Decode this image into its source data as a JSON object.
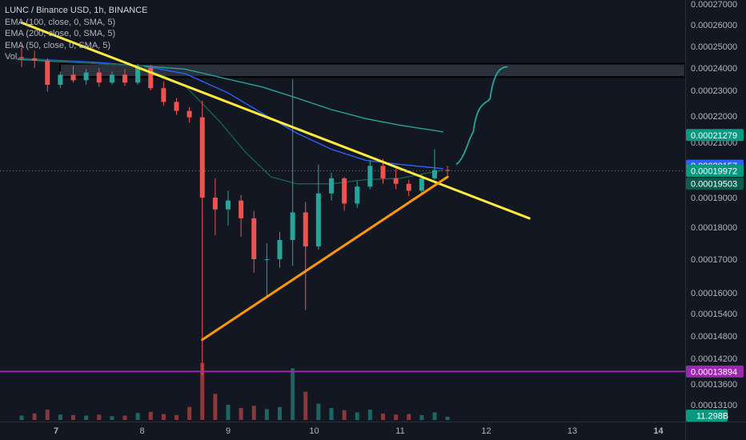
{
  "header": {
    "title": "LUNC / Binance USD, 1h, BINANCE",
    "indicators": [
      "EMA (100, close, 0, SMA, 5)",
      "EMA (200, close, 0, SMA, 5)",
      "EMA (50, close, 0, SMA, 5)",
      "Vol"
    ]
  },
  "chart_data": {
    "type": "candlestick",
    "symbol": "LUNC / Binance USD",
    "interval": "1h",
    "exchange": "BINANCE",
    "y_ticks": [
      0.00027,
      0.00026,
      0.00025,
      0.00024,
      0.00023,
      0.00022,
      0.00021,
      0.00019,
      0.00018,
      0.00017,
      0.00016,
      0.000154,
      0.000148,
      0.000142,
      0.000136,
      0.000131
    ],
    "y_tick_labels": [
      "0.00027000",
      "0.00026000",
      "0.00025000",
      "0.00024000",
      "0.00023000",
      "0.00022000",
      "0.00021000",
      "0.00019000",
      "0.00018000",
      "0.00017000",
      "0.00016000",
      "0.00015400",
      "0.00014800",
      "0.00014200",
      "0.00013600",
      "0.00013100"
    ],
    "x_ticks": [
      7,
      8,
      9,
      10,
      11,
      12,
      13,
      14
    ],
    "x_tick_labels": [
      "7",
      "8",
      "9",
      "10",
      "11",
      "12",
      "13",
      "14"
    ],
    "price_badges": [
      {
        "label": "0.00021279",
        "value": 0.00021279,
        "color": "#089981"
      },
      {
        "label": "0.00020157",
        "value": 0.00020157,
        "color": "#2962ff"
      },
      {
        "label": "0.00019972",
        "value": 0.00019972,
        "color": "#089981"
      },
      {
        "label": "0.00019503",
        "value": 0.00019503,
        "color": "#0b5c4c"
      },
      {
        "label": "0.00013894",
        "value": 0.00013894,
        "color": "#9c27b0"
      }
    ],
    "volume_badge": {
      "label": "11.298B",
      "color": "#089981"
    },
    "last_price": 0.00019972,
    "support_level": 0.00013894,
    "resistance_zone": [
      0.000236,
      0.000242
    ],
    "trendlines": [
      {
        "name": "descending",
        "x": [
          6.6,
          12.5
        ],
        "y": [
          0.000261,
          0.000183
        ],
        "color": "#ffeb3b"
      },
      {
        "name": "ascending",
        "x": [
          8.7,
          11.55
        ],
        "y": [
          0.000147,
          0.0001975
        ],
        "color": "#ff9800"
      }
    ],
    "ema_series": [
      {
        "label": "EMA 100",
        "color": "#2962ff",
        "x": [
          6.55,
          7.5,
          8.0,
          8.5,
          9.0,
          9.4,
          9.8,
          10.2,
          10.6,
          11.0,
          11.5
        ],
        "y": [
          0.0002445,
          0.0002425,
          0.000241,
          0.0002375,
          0.000229,
          0.000221,
          0.0002135,
          0.0002075,
          0.0002035,
          0.000202,
          0.0002005
        ]
      },
      {
        "label": "EMA 200",
        "color": "#26a69a",
        "x": [
          6.55,
          7.5,
          8.0,
          8.5,
          9.0,
          9.4,
          9.8,
          10.2,
          10.6,
          11.0,
          11.5
        ],
        "y": [
          0.000244,
          0.000242,
          0.000241,
          0.0002395,
          0.000235,
          0.0002315,
          0.000227,
          0.0002225,
          0.000219,
          0.0002165,
          0.000214
        ]
      },
      {
        "label": "EMA 50",
        "color": "#1b5e4f",
        "x": [
          6.55,
          7.5,
          8.0,
          8.5,
          8.9,
          9.2,
          9.5,
          9.8,
          10.2,
          10.6,
          11.0,
          11.5
        ],
        "y": [
          0.0002445,
          0.000242,
          0.000241,
          0.000232,
          0.000218,
          0.0002065,
          0.0001975,
          0.000195,
          0.000195,
          0.0001965,
          0.000197,
          0.0002
        ]
      }
    ],
    "projection": {
      "color": "#26a69a",
      "x": [
        11.65,
        11.85,
        12.05,
        12.25
      ],
      "y": [
        0.000202,
        0.000212,
        0.000228,
        0.0002405
      ]
    },
    "candles": [
      [
        6.6,
        0.000245,
        0.00025,
        0.0002405,
        0.0002445
      ],
      [
        6.75,
        0.0002445,
        0.000248,
        0.00024,
        0.0002435
      ],
      [
        6.9,
        0.0002435,
        0.0002445,
        0.0002295,
        0.0002325
      ],
      [
        7.05,
        0.0002325,
        0.0002385,
        0.000231,
        0.000237
      ],
      [
        7.2,
        0.000237,
        0.000241,
        0.0002335,
        0.0002345
      ],
      [
        7.35,
        0.0002345,
        0.0002395,
        0.0002325,
        0.000238
      ],
      [
        7.5,
        0.000238,
        0.00024,
        0.0002315,
        0.0002335
      ],
      [
        7.65,
        0.0002335,
        0.0002385,
        0.0002325,
        0.000237
      ],
      [
        7.8,
        0.000237,
        0.0002395,
        0.000232,
        0.0002335
      ],
      [
        7.95,
        0.0002335,
        0.000242,
        0.0002325,
        0.00024
      ],
      [
        8.1,
        0.00024,
        0.0002415,
        0.00023,
        0.000231
      ],
      [
        8.25,
        0.000231,
        0.000234,
        0.000224,
        0.0002255
      ],
      [
        8.4,
        0.0002255,
        0.000227,
        0.0002205,
        0.000222
      ],
      [
        8.55,
        0.000222,
        0.0002235,
        0.0002175,
        0.0002195
      ],
      [
        8.7,
        0.0002195,
        0.000226,
        0.000138,
        0.00019
      ],
      [
        8.85,
        0.00019,
        0.000197,
        0.0001775,
        0.000186
      ],
      [
        9.0,
        0.000186,
        0.0001925,
        0.0001805,
        0.000189
      ],
      [
        9.15,
        0.000189,
        0.000191,
        0.000177,
        0.000183
      ],
      [
        9.3,
        0.000183,
        0.0001855,
        0.000166,
        0.00017
      ],
      [
        9.45,
        0.00017,
        0.000175,
        0.000159,
        0.00017
      ],
      [
        9.6,
        0.00017,
        0.0001785,
        0.0001675,
        0.000176
      ],
      [
        9.75,
        0.000176,
        0.000235,
        0.000168,
        0.000185
      ],
      [
        9.9,
        0.000185,
        0.0001885,
        0.000155,
        0.000174
      ],
      [
        10.05,
        0.000174,
        0.000202,
        0.000173,
        0.0001915
      ],
      [
        10.2,
        0.0001915,
        0.000199,
        0.000189,
        0.000197
      ],
      [
        10.35,
        0.000197,
        0.0001975,
        0.0001855,
        0.000188
      ],
      [
        10.5,
        0.000188,
        0.000196,
        0.0001865,
        0.000194
      ],
      [
        10.65,
        0.000194,
        0.0002035,
        0.000193,
        0.0002015
      ],
      [
        10.8,
        0.0002015,
        0.000204,
        0.000195,
        0.000197
      ],
      [
        10.95,
        0.000197,
        0.0002005,
        0.000193,
        0.000195
      ],
      [
        11.1,
        0.000195,
        0.0001965,
        0.0001905,
        0.0001925
      ],
      [
        11.25,
        0.0001925,
        0.0001985,
        0.0001915,
        0.000197
      ],
      [
        11.4,
        0.000197,
        0.0002075,
        0.0001965,
        0.0002
      ],
      [
        11.55,
        0.0002,
        0.0002015,
        0.000198,
        0.00019972
      ]
    ],
    "volumes": [
      [
        6.6,
        0.8,
        "up"
      ],
      [
        6.75,
        1.2,
        "down"
      ],
      [
        6.9,
        1.9,
        "down"
      ],
      [
        7.05,
        1.0,
        "up"
      ],
      [
        7.2,
        0.9,
        "down"
      ],
      [
        7.35,
        0.8,
        "up"
      ],
      [
        7.5,
        1.0,
        "down"
      ],
      [
        7.65,
        0.7,
        "up"
      ],
      [
        7.8,
        0.8,
        "down"
      ],
      [
        7.95,
        1.3,
        "up"
      ],
      [
        8.1,
        1.5,
        "down"
      ],
      [
        8.25,
        1.1,
        "down"
      ],
      [
        8.4,
        0.9,
        "down"
      ],
      [
        8.55,
        2.4,
        "down"
      ],
      [
        8.7,
        10.5,
        "down"
      ],
      [
        8.85,
        4.8,
        "down"
      ],
      [
        9.0,
        2.8,
        "up"
      ],
      [
        9.15,
        2.2,
        "down"
      ],
      [
        9.3,
        2.6,
        "down"
      ],
      [
        9.45,
        2.0,
        "up"
      ],
      [
        9.6,
        2.4,
        "up"
      ],
      [
        9.75,
        9.5,
        "up"
      ],
      [
        9.9,
        5.2,
        "down"
      ],
      [
        10.05,
        3.0,
        "up"
      ],
      [
        10.2,
        2.2,
        "up"
      ],
      [
        10.35,
        1.8,
        "down"
      ],
      [
        10.5,
        1.4,
        "up"
      ],
      [
        10.65,
        1.9,
        "up"
      ],
      [
        10.8,
        1.2,
        "down"
      ],
      [
        10.95,
        1.0,
        "down"
      ],
      [
        11.1,
        1.1,
        "down"
      ],
      [
        11.25,
        0.9,
        "up"
      ],
      [
        11.4,
        1.4,
        "up"
      ],
      [
        11.55,
        0.6,
        "up"
      ]
    ]
  }
}
